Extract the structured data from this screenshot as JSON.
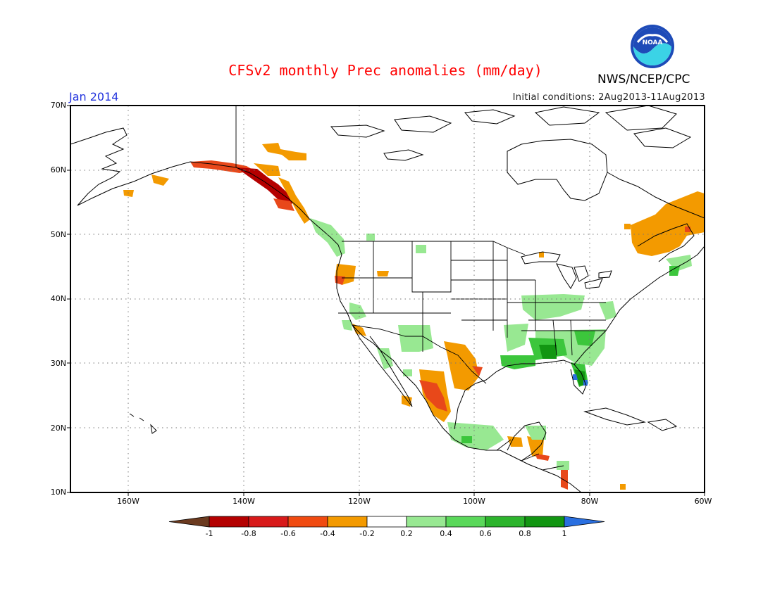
{
  "title": "CFSv2 monthly Prec anomalies (mm/day)",
  "month_label": "Jan 2014",
  "initial_conditions": "Initial conditions: 2Aug2013-11Aug2013",
  "agency": "NWS/NCEP/CPC",
  "logo_text": "NOAA",
  "lat_labels": [
    "70N",
    "60N",
    "50N",
    "40N",
    "30N",
    "20N",
    "10N"
  ],
  "lon_labels": [
    "160W",
    "140W",
    "120W",
    "100W",
    "80W",
    "60W"
  ],
  "colorbar": {
    "labels": [
      "-1",
      "-0.8",
      "-0.6",
      "-0.4",
      "-0.2",
      "0.2",
      "0.4",
      "0.6",
      "0.8",
      "1"
    ],
    "colors": [
      "#6b3a1f",
      "#b40000",
      "#d81a1a",
      "#f04a10",
      "#f39a00",
      "#ffffff",
      "#98e892",
      "#5ad85a",
      "#2cb42c",
      "#129612",
      "#2a6fe0"
    ]
  },
  "colors": {
    "title": "#ff0000",
    "month": "#2233dd",
    "dry_moderate": "#f39a00",
    "dry_strong": "#e8481a",
    "dry_extreme": "#b40000",
    "wet_light": "#98e892",
    "wet_moderate": "#3cc63c",
    "wet_strong": "#129612",
    "wet_extreme": "#2a6fe0"
  },
  "map": {
    "lon_range": [
      -170,
      -60
    ],
    "lat_range": [
      10,
      70
    ],
    "gridlines": "dotted every 20 degrees longitude and 10 degrees latitude"
  }
}
